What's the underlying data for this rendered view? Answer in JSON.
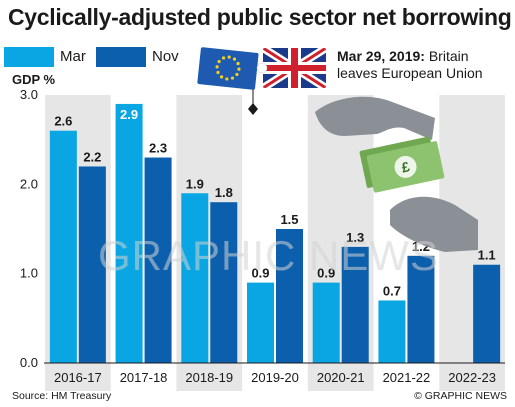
{
  "colors": {
    "mar": "#0AA6E3",
    "nov": "#0C5FAD",
    "panel_shade": "#E6E6E6",
    "text": "#1A1A1A",
    "euro_blue": "#1E5BB0",
    "euro_star": "#F5D020",
    "money_green": "#8DC26F",
    "hand_grey": "#8A9096"
  },
  "title": "Cyclically-adjusted public sector net borrowing",
  "legend": {
    "mar_label": "Mar",
    "nov_label": "Nov"
  },
  "annotation": {
    "bold": "Mar 29, 2019:",
    "text": " Britain leaves European Union"
  },
  "footer": {
    "source": "Source: HM Treasury",
    "credit": "© GRAPHIC NEWS"
  },
  "watermark": "GRAPHIC NEWS",
  "icons": [
    "eu-flag-icon",
    "uk-flag-icon",
    "money-hands-icon",
    "diamond-marker-icon"
  ],
  "chart_data": {
    "type": "bar",
    "ylabel": "GDP %",
    "ylim": [
      0,
      3.0
    ],
    "yticks": [
      "0.0",
      "1.0",
      "2.0",
      "3.0"
    ],
    "categories": [
      "2016-17",
      "2017-18",
      "2018-19",
      "2019-20",
      "2020-21",
      "2021-22",
      "2022-23"
    ],
    "series": [
      {
        "name": "Mar",
        "values": [
          2.6,
          2.9,
          1.9,
          0.9,
          0.9,
          0.7,
          null
        ]
      },
      {
        "name": "Nov",
        "values": [
          2.2,
          2.3,
          1.8,
          1.5,
          1.3,
          1.2,
          1.1
        ]
      }
    ],
    "data_labels": {
      "Mar": [
        "2.6",
        "2.9",
        "1.9",
        "0.9",
        "0.9",
        "0.7",
        ""
      ],
      "Nov": [
        "2.2",
        "2.3",
        "1.8",
        "1.5",
        "1.3",
        "1.2",
        "1.1"
      ]
    },
    "alternating_shade": true,
    "grid": false,
    "legend_position": "top-left"
  }
}
